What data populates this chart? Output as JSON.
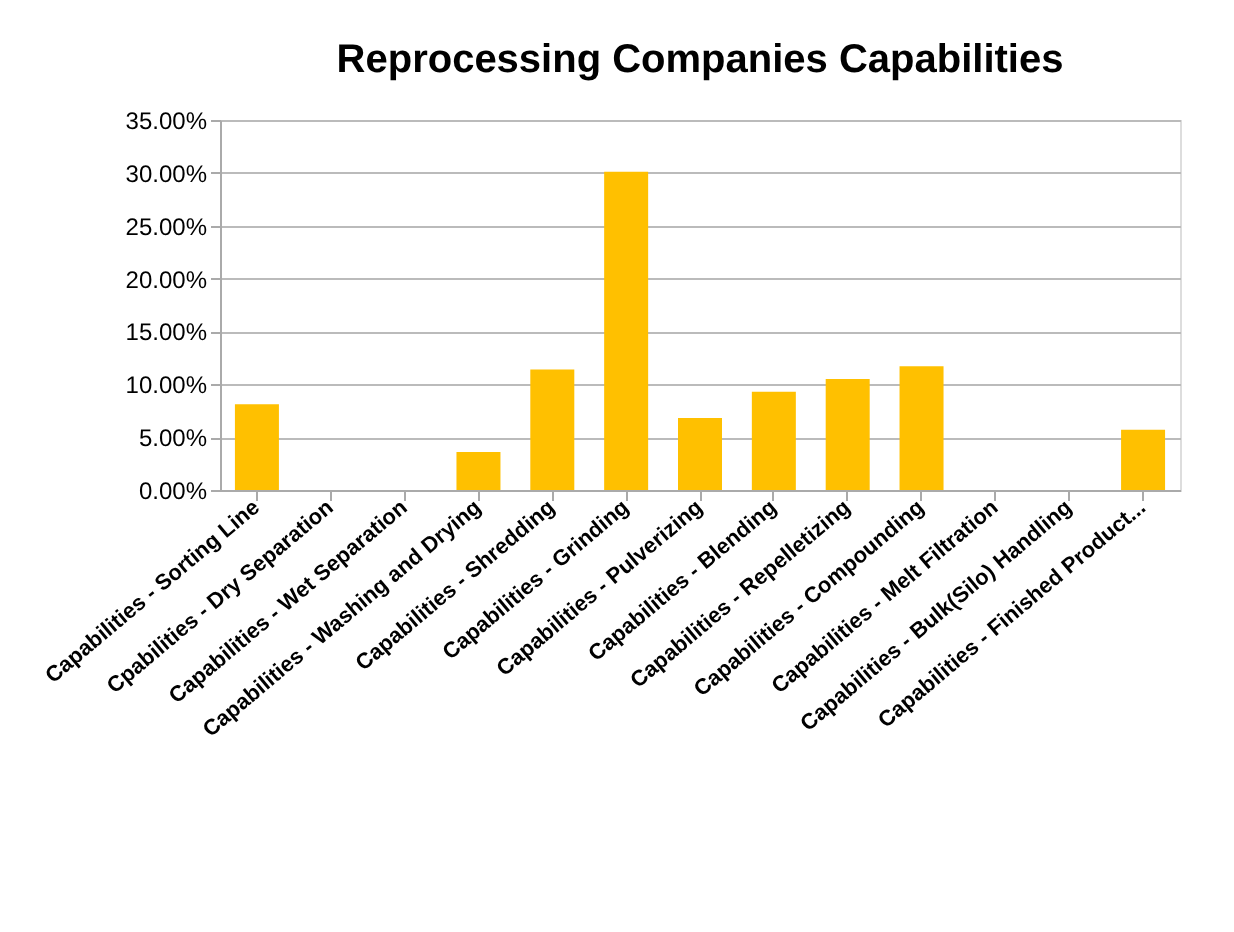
{
  "chart_data": {
    "type": "bar",
    "title": "Reprocessing Companies Capabilities",
    "categories": [
      "Capabilities - Sorting Line",
      "Cpabilities - Dry Separation",
      "Capabilities - Wet Separation",
      "Capabilities - Washing and Drying",
      "Capabilities - Shredding",
      "Capabilities - Grinding",
      "Capabilities - Pulverizing",
      "Capabilities - Blending",
      "Capabilities - Repelletizing",
      "Capabilities - Compounding",
      "Capabilities - Melt Filtration",
      "Capabilities - Bulk(Silo) Handling",
      "Capabilities - Finished Product..."
    ],
    "values": [
      8.1,
      0,
      0,
      3.6,
      11.4,
      30.1,
      6.8,
      9.3,
      10.5,
      11.7,
      0,
      0,
      5.7
    ],
    "color": "#ffc000",
    "ylim": [
      0,
      35
    ],
    "yticks": [
      {
        "value": 0,
        "label": "0.00%"
      },
      {
        "value": 5,
        "label": "5.00%"
      },
      {
        "value": 10,
        "label": "10.00%"
      },
      {
        "value": 15,
        "label": "15.00%"
      },
      {
        "value": 20,
        "label": "20.00%"
      },
      {
        "value": 25,
        "label": "25.00%"
      },
      {
        "value": 30,
        "label": "30.00%"
      },
      {
        "value": 35,
        "label": "35.00%"
      }
    ],
    "grid": "y"
  }
}
